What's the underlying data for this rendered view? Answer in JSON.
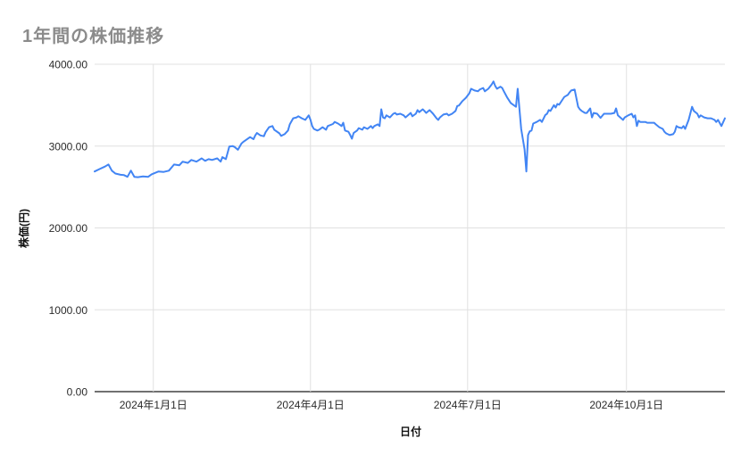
{
  "chart_data": {
    "type": "line",
    "title": "1年間の株価推移",
    "xlabel": "日付",
    "ylabel": "株価(円)",
    "x_unit": "days-from-first-point",
    "x_range": [
      0,
      365
    ],
    "ylim": [
      0,
      4000
    ],
    "grid": true,
    "legend": "none",
    "line_color": "#4285f4",
    "grid_color": "#e0e0e0",
    "baseline_color": "#424242",
    "y_ticks": [
      {
        "v": 0,
        "label": "0.00"
      },
      {
        "v": 1000,
        "label": "1000.00"
      },
      {
        "v": 2000,
        "label": "2000.00"
      },
      {
        "v": 3000,
        "label": "3000.00"
      },
      {
        "v": 4000,
        "label": "4000.00"
      }
    ],
    "x_ticks": [
      {
        "d": 34,
        "label": "2024年1月1日"
      },
      {
        "d": 125,
        "label": "2024年4月1日"
      },
      {
        "d": 216,
        "label": "2024年7月1日"
      },
      {
        "d": 308,
        "label": "2024年10月1日"
      }
    ],
    "series": [
      {
        "points": [
          [
            0,
            2690
          ],
          [
            3,
            2720
          ],
          [
            6,
            2750
          ],
          [
            8,
            2775
          ],
          [
            10,
            2700
          ],
          [
            12,
            2665
          ],
          [
            15,
            2650
          ],
          [
            17,
            2645
          ],
          [
            19,
            2625
          ],
          [
            21,
            2700
          ],
          [
            23,
            2625
          ],
          [
            25,
            2620
          ],
          [
            28,
            2630
          ],
          [
            31,
            2625
          ],
          [
            33,
            2655
          ],
          [
            37,
            2690
          ],
          [
            40,
            2685
          ],
          [
            43,
            2700
          ],
          [
            46,
            2775
          ],
          [
            49,
            2765
          ],
          [
            51,
            2810
          ],
          [
            54,
            2795
          ],
          [
            56,
            2830
          ],
          [
            59,
            2810
          ],
          [
            62,
            2850
          ],
          [
            64,
            2820
          ],
          [
            66,
            2840
          ],
          [
            68,
            2830
          ],
          [
            71,
            2850
          ],
          [
            73,
            2810
          ],
          [
            74,
            2865
          ],
          [
            76,
            2840
          ],
          [
            78,
            2995
          ],
          [
            80,
            3000
          ],
          [
            81,
            2990
          ],
          [
            83,
            2955
          ],
          [
            85,
            3030
          ],
          [
            86,
            3050
          ],
          [
            88,
            3080
          ],
          [
            90,
            3110
          ],
          [
            92,
            3085
          ],
          [
            93,
            3130
          ],
          [
            94,
            3160
          ],
          [
            96,
            3130
          ],
          [
            98,
            3120
          ],
          [
            99,
            3170
          ],
          [
            101,
            3230
          ],
          [
            103,
            3245
          ],
          [
            104,
            3200
          ],
          [
            107,
            3155
          ],
          [
            108,
            3125
          ],
          [
            110,
            3145
          ],
          [
            112,
            3190
          ],
          [
            113,
            3265
          ],
          [
            115,
            3340
          ],
          [
            117,
            3350
          ],
          [
            118,
            3365
          ],
          [
            120,
            3340
          ],
          [
            122,
            3320
          ],
          [
            124,
            3375
          ],
          [
            125,
            3320
          ],
          [
            126,
            3245
          ],
          [
            127,
            3210
          ],
          [
            129,
            3190
          ],
          [
            130,
            3200
          ],
          [
            132,
            3230
          ],
          [
            134,
            3200
          ],
          [
            135,
            3245
          ],
          [
            138,
            3270
          ],
          [
            139,
            3295
          ],
          [
            141,
            3275
          ],
          [
            143,
            3245
          ],
          [
            144,
            3285
          ],
          [
            145,
            3190
          ],
          [
            147,
            3175
          ],
          [
            148,
            3135
          ],
          [
            149,
            3090
          ],
          [
            150,
            3160
          ],
          [
            152,
            3190
          ],
          [
            153,
            3220
          ],
          [
            155,
            3200
          ],
          [
            156,
            3230
          ],
          [
            158,
            3210
          ],
          [
            160,
            3245
          ],
          [
            161,
            3220
          ],
          [
            162,
            3245
          ],
          [
            164,
            3265
          ],
          [
            165,
            3245
          ],
          [
            166,
            3450
          ],
          [
            167,
            3350
          ],
          [
            168,
            3340
          ],
          [
            169,
            3375
          ],
          [
            171,
            3350
          ],
          [
            173,
            3395
          ],
          [
            174,
            3405
          ],
          [
            175,
            3385
          ],
          [
            177,
            3395
          ],
          [
            179,
            3375
          ],
          [
            180,
            3350
          ],
          [
            182,
            3385
          ],
          [
            183,
            3405
          ],
          [
            184,
            3365
          ],
          [
            186,
            3395
          ],
          [
            187,
            3440
          ],
          [
            188,
            3415
          ],
          [
            190,
            3450
          ],
          [
            191,
            3430
          ],
          [
            192,
            3405
          ],
          [
            194,
            3440
          ],
          [
            196,
            3395
          ],
          [
            198,
            3340
          ],
          [
            199,
            3320
          ],
          [
            200,
            3350
          ],
          [
            202,
            3385
          ],
          [
            204,
            3395
          ],
          [
            205,
            3375
          ],
          [
            207,
            3395
          ],
          [
            209,
            3430
          ],
          [
            210,
            3490
          ],
          [
            211,
            3495
          ],
          [
            213,
            3550
          ],
          [
            215,
            3590
          ],
          [
            217,
            3645
          ],
          [
            218,
            3700
          ],
          [
            220,
            3680
          ],
          [
            222,
            3670
          ],
          [
            223,
            3690
          ],
          [
            225,
            3710
          ],
          [
            226,
            3670
          ],
          [
            228,
            3700
          ],
          [
            230,
            3755
          ],
          [
            231,
            3790
          ],
          [
            232,
            3735
          ],
          [
            233,
            3700
          ],
          [
            235,
            3725
          ],
          [
            236,
            3710
          ],
          [
            237,
            3670
          ],
          [
            239,
            3590
          ],
          [
            241,
            3525
          ],
          [
            244,
            3480
          ],
          [
            245,
            3700
          ],
          [
            247,
            3210
          ],
          [
            249,
            2960
          ],
          [
            250,
            2690
          ],
          [
            251,
            3135
          ],
          [
            252,
            3180
          ],
          [
            253,
            3190
          ],
          [
            254,
            3275
          ],
          [
            256,
            3295
          ],
          [
            258,
            3320
          ],
          [
            259,
            3295
          ],
          [
            261,
            3380
          ],
          [
            262,
            3395
          ],
          [
            263,
            3440
          ],
          [
            264,
            3430
          ],
          [
            266,
            3500
          ],
          [
            267,
            3470
          ],
          [
            268,
            3515
          ],
          [
            269,
            3505
          ],
          [
            271,
            3570
          ],
          [
            272,
            3600
          ],
          [
            274,
            3625
          ],
          [
            275,
            3655
          ],
          [
            276,
            3680
          ],
          [
            278,
            3690
          ],
          [
            280,
            3480
          ],
          [
            281,
            3450
          ],
          [
            282,
            3430
          ],
          [
            284,
            3405
          ],
          [
            285,
            3405
          ],
          [
            287,
            3460
          ],
          [
            288,
            3350
          ],
          [
            289,
            3405
          ],
          [
            291,
            3395
          ],
          [
            293,
            3345
          ],
          [
            295,
            3395
          ],
          [
            297,
            3395
          ],
          [
            299,
            3395
          ],
          [
            301,
            3405
          ],
          [
            302,
            3460
          ],
          [
            303,
            3375
          ],
          [
            305,
            3340
          ],
          [
            306,
            3320
          ],
          [
            307,
            3350
          ],
          [
            309,
            3375
          ],
          [
            311,
            3395
          ],
          [
            312,
            3350
          ],
          [
            313,
            3375
          ],
          [
            314,
            3245
          ],
          [
            315,
            3310
          ],
          [
            316,
            3295
          ],
          [
            319,
            3295
          ],
          [
            320,
            3285
          ],
          [
            322,
            3285
          ],
          [
            324,
            3285
          ],
          [
            325,
            3265
          ],
          [
            327,
            3230
          ],
          [
            329,
            3210
          ],
          [
            330,
            3175
          ],
          [
            331,
            3155
          ],
          [
            333,
            3135
          ],
          [
            335,
            3145
          ],
          [
            336,
            3175
          ],
          [
            337,
            3245
          ],
          [
            338,
            3230
          ],
          [
            340,
            3220
          ],
          [
            341,
            3245
          ],
          [
            342,
            3210
          ],
          [
            344,
            3320
          ],
          [
            346,
            3480
          ],
          [
            347,
            3430
          ],
          [
            349,
            3395
          ],
          [
            350,
            3350
          ],
          [
            351,
            3375
          ],
          [
            353,
            3350
          ],
          [
            355,
            3340
          ],
          [
            357,
            3340
          ],
          [
            359,
            3320
          ],
          [
            360,
            3295
          ],
          [
            361,
            3320
          ],
          [
            363,
            3245
          ],
          [
            365,
            3340
          ]
        ]
      }
    ]
  }
}
